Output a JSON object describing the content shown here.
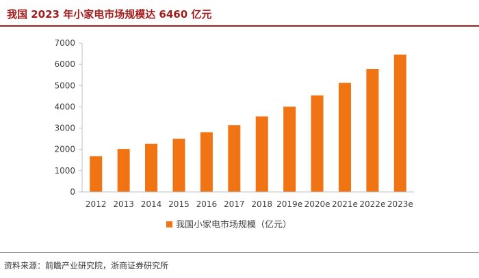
{
  "header": {
    "title": "我国 2023 年小家电市场规模达 6460 亿元"
  },
  "footer": {
    "source": "资料来源：前瞻产业研究院，浙商证券研究所"
  },
  "colors": {
    "bar": "#f07314",
    "title": "#a11c1c",
    "axis": "#bfbfbf"
  },
  "chart_data": {
    "type": "bar",
    "title": "",
    "xlabel": "",
    "ylabel": "",
    "categories": [
      "2012",
      "2013",
      "2014",
      "2015",
      "2016",
      "2017",
      "2018",
      "2019e",
      "2020e",
      "2021e",
      "2022e",
      "2023e"
    ],
    "series": [
      {
        "name": "我国小家电市场规模（亿元）",
        "values": [
          1680,
          2020,
          2260,
          2500,
          2810,
          3140,
          3550,
          4010,
          4540,
          5130,
          5780,
          6460
        ]
      }
    ],
    "ylim": [
      0,
      7000
    ],
    "yticks": [
      0,
      1000,
      2000,
      3000,
      4000,
      5000,
      6000,
      7000
    ],
    "grid": false,
    "legend_position": "bottom-center"
  }
}
